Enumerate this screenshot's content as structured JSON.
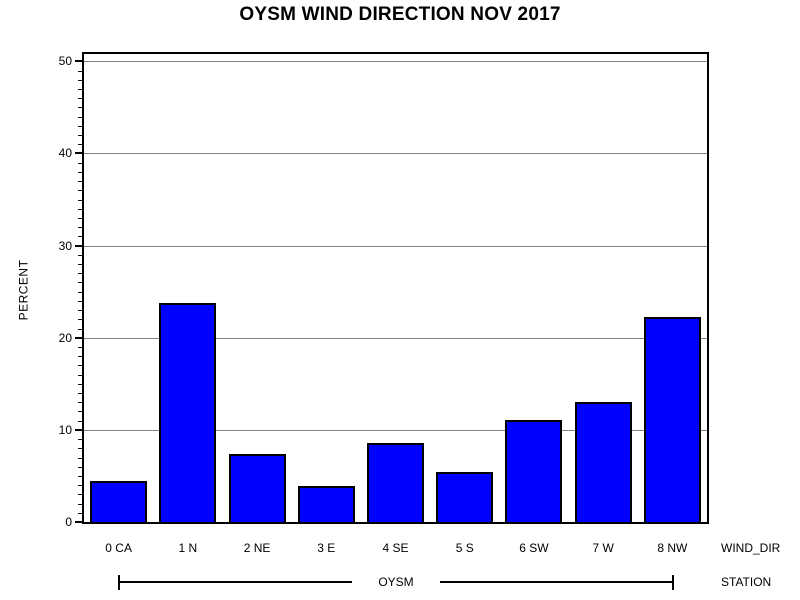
{
  "chart_data": {
    "type": "bar",
    "title": "OYSM WIND DIRECTION NOV 2017",
    "categories": [
      "0 CA",
      "1 N",
      "2 NE",
      "3 E",
      "4 SE",
      "5 S",
      "6 SW",
      "7 W",
      "8 NW"
    ],
    "values": [
      4.5,
      23.8,
      7.4,
      3.9,
      8.6,
      5.4,
      11.1,
      13.0,
      22.2
    ],
    "ylabel": "PERCENT",
    "xlabel": "WIND_DIR",
    "group_axis_label": "STATION",
    "group_value": "OYSM",
    "ylim": [
      0,
      50.8
    ],
    "y_major_ticks": [
      0,
      10,
      20,
      30,
      40,
      50
    ],
    "y_minor_step": 1,
    "grid": true,
    "legend": "none",
    "bar_color": "#0000ff",
    "bar_border_color": "#000000",
    "grid_color": "#808080"
  }
}
